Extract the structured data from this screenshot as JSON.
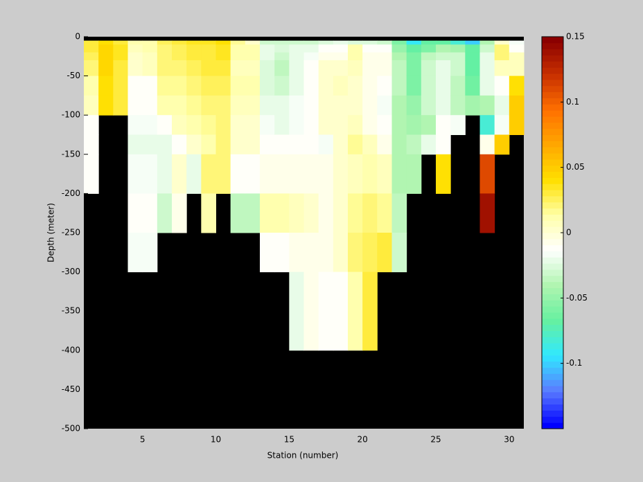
{
  "chart_data": {
    "type": "heatmap",
    "xlabel": "Station (number)",
    "ylabel": "Depth (meter)",
    "x": [
      1,
      2,
      3,
      4,
      5,
      6,
      7,
      8,
      9,
      10,
      11,
      12,
      13,
      14,
      15,
      16,
      17,
      18,
      19,
      20,
      21,
      22,
      23,
      24,
      25,
      26,
      27,
      28,
      29,
      30,
      31
    ],
    "y": [
      -5,
      -10,
      -20,
      -30,
      -50,
      -75,
      -100,
      -125,
      -150,
      -200,
      -250,
      -300,
      -400,
      -500
    ],
    "z": [
      [
        0.03,
        0.03,
        0.025,
        0.02,
        0.01,
        0.005,
        -0.01,
        -0.01,
        -0.01,
        null,
        null,
        null,
        null
      ],
      [
        0.04,
        0.045,
        0.045,
        0.045,
        0.04,
        0.04,
        null,
        null,
        null,
        null,
        null,
        null,
        null
      ],
      [
        0.03,
        0.035,
        0.035,
        0.03,
        0.03,
        0.03,
        null,
        null,
        null,
        null,
        null,
        null,
        null
      ],
      [
        0.01,
        0.005,
        0,
        0,
        -0.01,
        -0.01,
        -0.015,
        -0.02,
        -0.015,
        -0.01,
        -0.015,
        null,
        null
      ],
      [
        0.01,
        0.01,
        0.005,
        0.005,
        -0.01,
        -0.01,
        -0.015,
        -0.02,
        -0.015,
        -0.01,
        -0.015,
        null,
        null
      ],
      [
        0.025,
        0.02,
        0.02,
        0.02,
        0.015,
        0.01,
        -0.01,
        -0.02,
        -0.02,
        -0.03,
        null,
        null,
        null
      ],
      [
        0.03,
        0.025,
        0.025,
        0.02,
        0.015,
        0.01,
        0.005,
        -0.01,
        0,
        -0.005,
        null,
        null,
        null
      ],
      [
        0.035,
        0.03,
        0.03,
        0.025,
        0.02,
        0.015,
        0.01,
        0,
        -0.02,
        null,
        null,
        null,
        null
      ],
      [
        0.035,
        0.03,
        0.03,
        0.03,
        0.025,
        0.02,
        0.015,
        0.01,
        0.02,
        0.01,
        null,
        null,
        null
      ],
      [
        0.04,
        0.035,
        0.035,
        0.03,
        0.025,
        0.02,
        0.02,
        0.02,
        0.02,
        null,
        null,
        null,
        null
      ],
      [
        0.015,
        0.01,
        0.01,
        0.005,
        0.01,
        0.005,
        0,
        0,
        -0.01,
        -0.035,
        null,
        null,
        null
      ],
      [
        0,
        0.01,
        0.01,
        0.005,
        0.01,
        0.005,
        0,
        0,
        -0.01,
        -0.035,
        null,
        null,
        null
      ],
      [
        -0.03,
        -0.02,
        -0.02,
        -0.025,
        -0.025,
        -0.02,
        -0.015,
        -0.01,
        -0.005,
        0.01,
        -0.01,
        null,
        null
      ],
      [
        -0.03,
        -0.025,
        -0.03,
        -0.035,
        -0.03,
        -0.02,
        -0.02,
        -0.01,
        -0.005,
        0.01,
        -0.01,
        null,
        null
      ],
      [
        -0.03,
        -0.02,
        -0.02,
        -0.02,
        -0.02,
        -0.015,
        -0.015,
        -0.01,
        -0.005,
        0.005,
        -0.005,
        -0.02,
        null
      ],
      [
        -0.03,
        -0.02,
        -0.015,
        -0.01,
        -0.01,
        -0.01,
        -0.01,
        -0.01,
        -0.005,
        0,
        -0.005,
        -0.005,
        null
      ],
      [
        -0.025,
        -0.01,
        -0.005,
        0,
        0,
        0,
        0,
        -0.015,
        -0.005,
        -0.005,
        -0.005,
        -0.01,
        null
      ],
      [
        -0.02,
        -0.01,
        -0.005,
        0,
        0.005,
        0,
        0,
        0,
        0,
        0,
        0,
        -0.01,
        null
      ],
      [
        -0.025,
        0.01,
        0.01,
        0.005,
        0,
        0,
        0.005,
        0.015,
        0.005,
        0.015,
        0.02,
        0.01,
        null
      ],
      [
        -0.025,
        -0.01,
        -0.005,
        -0.005,
        -0.005,
        -0.005,
        -0.005,
        0.005,
        0.01,
        0.02,
        0.025,
        0.03,
        null
      ],
      [
        -0.03,
        -0.01,
        -0.005,
        -0.005,
        -0.01,
        -0.015,
        -0.01,
        -0.005,
        0.005,
        0.015,
        0.03,
        null,
        null
      ],
      [
        -0.06,
        -0.05,
        -0.04,
        -0.035,
        -0.035,
        -0.04,
        -0.04,
        -0.04,
        -0.04,
        -0.035,
        -0.03,
        null,
        null
      ],
      [
        -0.09,
        -0.07,
        -0.06,
        -0.06,
        -0.06,
        -0.05,
        -0.045,
        -0.035,
        -0.04,
        null,
        null,
        null,
        null
      ],
      [
        -0.07,
        -0.06,
        -0.035,
        -0.03,
        -0.03,
        -0.03,
        -0.04,
        -0.02,
        null,
        null,
        null,
        null,
        null
      ],
      [
        -0.07,
        -0.04,
        -0.03,
        -0.02,
        -0.02,
        -0.02,
        -0.01,
        -0.01,
        0.04,
        null,
        null,
        null,
        null
      ],
      [
        -0.08,
        -0.045,
        -0.03,
        -0.03,
        -0.035,
        -0.035,
        -0.015,
        null,
        null,
        null,
        null,
        null,
        null
      ],
      [
        -0.1,
        -0.07,
        -0.07,
        -0.07,
        -0.065,
        -0.045,
        null,
        null,
        null,
        null,
        null,
        null,
        null
      ],
      [
        -0.04,
        -0.03,
        -0.02,
        -0.02,
        -0.02,
        -0.04,
        -0.08,
        -0.005,
        0.11,
        0.14,
        null,
        null,
        null
      ],
      [
        0,
        0.02,
        0.02,
        0.005,
        -0.01,
        -0.02,
        -0.015,
        0.05,
        null,
        null,
        null,
        null,
        null
      ],
      [
        -0.015,
        -0.01,
        0.005,
        0.005,
        0.04,
        0.05,
        0.05,
        null,
        null,
        null,
        null,
        null,
        null
      ]
    ],
    "xlim": [
      1,
      31
    ],
    "xticks": [
      5,
      10,
      15,
      20,
      25,
      30
    ],
    "ylim": [
      -500,
      0
    ],
    "yticks": [
      0,
      -50,
      -100,
      -150,
      -200,
      -250,
      -300,
      -350,
      -400,
      -450,
      -500
    ],
    "clim": [
      -0.15,
      0.15
    ],
    "cticks": [
      0.15,
      0.1,
      0.05,
      0,
      -0.05,
      -0.1
    ],
    "colormap": [
      "#0000ff",
      "#5a7cff",
      "#30e8ff",
      "#66f0a0",
      "#b0f5b0",
      "#ffffff",
      "#ffffa8",
      "#ffe000",
      "#ffa800",
      "#ff7000",
      "#c83000",
      "#8b0000"
    ],
    "nan_color": "#000000",
    "background": "#cccccc"
  }
}
